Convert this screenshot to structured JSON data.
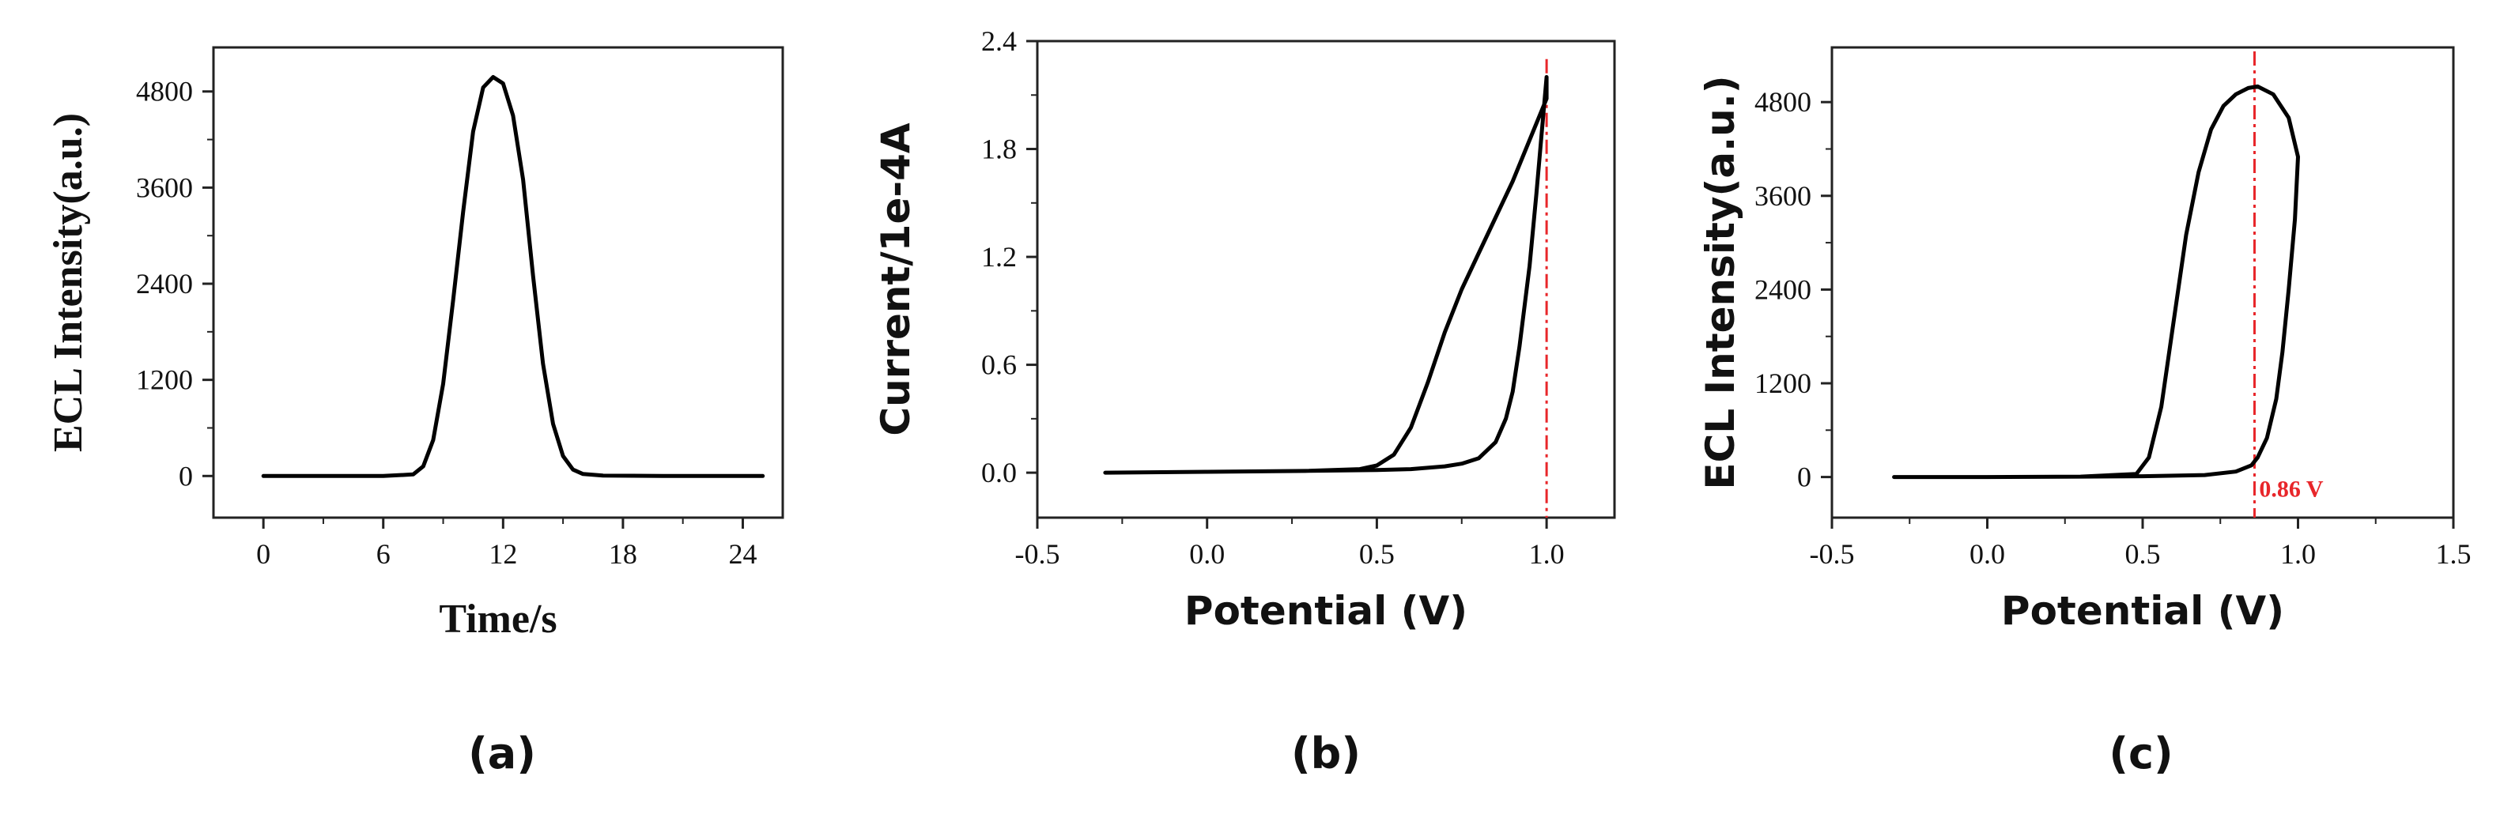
{
  "chart_data": [
    {
      "type": "line",
      "panel_label": "(a)",
      "xlabel": "Time/s",
      "ylabel": "ECL Intensity(a.u.)",
      "xlim": [
        -2.5,
        26
      ],
      "ylim": [
        -520,
        5350
      ],
      "xticks": [
        0,
        6,
        12,
        18,
        24
      ],
      "yticks": [
        0,
        1200,
        2400,
        3600,
        4800
      ],
      "xtick_labels": [
        "0",
        "6",
        "12",
        "18",
        "24"
      ],
      "ytick_labels": [
        "0",
        "1200",
        "2400",
        "3600",
        "4800"
      ],
      "grid": false,
      "series": [
        {
          "color": "#000000",
          "x": [
            0,
            6,
            7.5,
            8,
            8.5,
            9,
            9.5,
            10,
            10.5,
            11,
            11.5,
            12,
            12.5,
            13,
            13.5,
            14,
            14.5,
            15,
            15.5,
            16,
            17,
            20,
            25
          ],
          "y": [
            0,
            0,
            20,
            120,
            450,
            1150,
            2200,
            3300,
            4300,
            4850,
            4980,
            4900,
            4500,
            3700,
            2500,
            1400,
            650,
            250,
            80,
            25,
            5,
            0,
            0
          ]
        }
      ],
      "annotations": []
    },
    {
      "type": "line",
      "panel_label": "(b)",
      "xlabel": "Potential (V)",
      "ylabel": "Current/1e-4A",
      "xlim": [
        -0.5,
        1.2
      ],
      "ylim": [
        -0.25,
        2.4
      ],
      "xticks": [
        -0.5,
        0.0,
        0.5,
        1.0
      ],
      "yticks": [
        0.0,
        0.6,
        1.2,
        1.8,
        2.4
      ],
      "xtick_labels": [
        "-0.5",
        "0.0",
        "0.5",
        "1.0"
      ],
      "ytick_labels": [
        "0.0",
        "0.6",
        "1.2",
        "1.8",
        "2.4"
      ],
      "grid": false,
      "series": [
        {
          "color": "#000000",
          "x": [
            -0.3,
            0.0,
            0.3,
            0.45,
            0.5,
            0.55,
            0.6,
            0.65,
            0.7,
            0.75,
            0.8,
            0.85,
            0.9,
            0.95,
            1.0,
            1.0,
            0.97,
            0.95,
            0.92,
            0.9,
            0.88,
            0.85,
            0.8,
            0.75,
            0.7,
            0.6,
            0.5,
            0.3,
            0.0,
            -0.3
          ],
          "y": [
            0.0,
            0.005,
            0.01,
            0.02,
            0.04,
            0.1,
            0.25,
            0.5,
            0.78,
            1.02,
            1.22,
            1.42,
            1.62,
            1.85,
            2.08,
            2.2,
            1.55,
            1.15,
            0.7,
            0.45,
            0.3,
            0.17,
            0.08,
            0.05,
            0.035,
            0.02,
            0.015,
            0.01,
            0.005,
            0.0
          ]
        }
      ],
      "vlines": [
        {
          "x": 1.0,
          "color": "#e8262a",
          "style": "dash-dot",
          "y_range": [
            -0.25,
            2.3
          ]
        }
      ],
      "annotations": []
    },
    {
      "type": "line",
      "panel_label": "(c)",
      "xlabel": "Potential (V)",
      "ylabel": "ECL Intensity(a.u.)",
      "xlim": [
        -0.5,
        1.5
      ],
      "ylim": [
        -520,
        5500
      ],
      "xticks": [
        -0.5,
        0.0,
        0.5,
        1.0,
        1.5
      ],
      "yticks": [
        0,
        1200,
        2400,
        3600,
        4800
      ],
      "xtick_labels": [
        "-0.5",
        "0.0",
        "0.5",
        "1.0",
        "1.5"
      ],
      "ytick_labels": [
        "0",
        "1200",
        "2400",
        "3600",
        "4800"
      ],
      "grid": false,
      "series": [
        {
          "color": "#000000",
          "x": [
            -0.3,
            0.0,
            0.3,
            0.48,
            0.52,
            0.56,
            0.6,
            0.64,
            0.68,
            0.72,
            0.76,
            0.8,
            0.84,
            0.87,
            0.92,
            0.97,
            1.0,
            0.99,
            0.97,
            0.95,
            0.93,
            0.9,
            0.87,
            0.85,
            0.8,
            0.7,
            0.5,
            0.3,
            0.0,
            -0.3
          ],
          "y": [
            0,
            0,
            5,
            40,
            250,
            900,
            2000,
            3100,
            3900,
            4450,
            4750,
            4900,
            4980,
            5000,
            4900,
            4600,
            4100,
            3300,
            2400,
            1600,
            1000,
            500,
            250,
            150,
            70,
            25,
            10,
            5,
            0,
            0
          ]
        }
      ],
      "vlines": [
        {
          "x": 0.86,
          "color": "#e8262a",
          "style": "dash-dot",
          "y_range": [
            -520,
            5450
          ]
        }
      ],
      "annotations": [
        {
          "text": "0.86 V",
          "x": 0.875,
          "y": -130,
          "color": "#e8262a"
        }
      ]
    }
  ]
}
